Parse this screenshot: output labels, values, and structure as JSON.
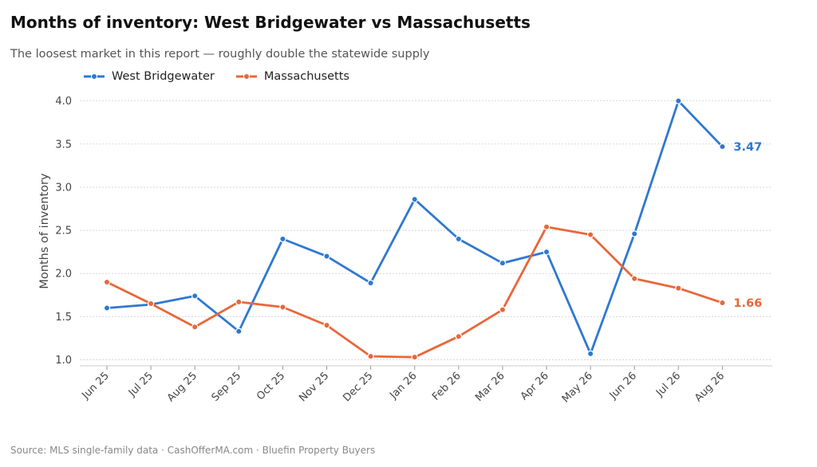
{
  "title": "Months of inventory: West Bridgewater vs Massachusetts",
  "subtitle": "The loosest market in this report — roughly double the statewide supply",
  "footer": "Source: MLS single-family data  ·  CashOfferMA.com  ·  Bluefin Property Buyers",
  "chart_data": {
    "type": "line",
    "categories": [
      "Jun 25",
      "Jul 25",
      "Aug 25",
      "Sep 25",
      "Oct 25",
      "Nov 25",
      "Dec 25",
      "Jan 26",
      "Feb 26",
      "Mar 26",
      "Apr 26",
      "May 26",
      "Jun 26",
      "Jul 26",
      "Aug 26"
    ],
    "series": [
      {
        "name": "West Bridgewater",
        "color": "#2f78d1",
        "values": [
          1.6,
          1.64,
          1.74,
          1.33,
          2.4,
          2.2,
          1.89,
          2.86,
          2.4,
          2.12,
          2.25,
          1.07,
          2.46,
          4.0,
          3.47
        ],
        "end_label": "3.47"
      },
      {
        "name": "Massachusetts",
        "color": "#e8673a",
        "values": [
          1.9,
          1.65,
          1.38,
          1.67,
          1.61,
          1.4,
          1.04,
          1.03,
          1.27,
          1.58,
          2.54,
          2.45,
          1.94,
          1.83,
          1.66
        ],
        "end_label": "1.66"
      }
    ],
    "ylabel": "Months of inventory",
    "xlabel": "",
    "yticks": [
      "1.0",
      "1.5",
      "2.0",
      "2.5",
      "3.0",
      "3.5",
      "4.0"
    ],
    "ylim": [
      0.93,
      4.08
    ],
    "grid": true,
    "legend_position": "top-left"
  }
}
